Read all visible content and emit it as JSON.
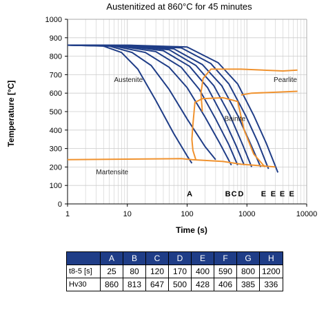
{
  "chart_data": {
    "type": "line",
    "title": "Austenitized at 860°C for 45 minutes",
    "xlabel": "Time (s)",
    "ylabel": "Temperature [°C]",
    "xscale": "log",
    "xlim": [
      1,
      10000
    ],
    "ylim": [
      0,
      1000
    ],
    "x_ticks": [
      "1",
      "10",
      "100",
      "1000",
      "10000"
    ],
    "y_ticks": [
      "0",
      "100",
      "200",
      "300",
      "400",
      "500",
      "600",
      "700",
      "800",
      "900",
      "1000"
    ],
    "grid": true,
    "region_labels": [
      {
        "text": "Austenite",
        "x": 6,
        "y": 660
      },
      {
        "text": "Pearlite",
        "x": 2800,
        "y": 660
      },
      {
        "text": "Bainite",
        "x": 420,
        "y": 450
      },
      {
        "text": "Martensite",
        "x": 3,
        "y": 160
      }
    ],
    "curve_labels": [
      {
        "text": "A",
        "x": 110
      },
      {
        "text": "B",
        "x": 480
      },
      {
        "text": "C",
        "x": 610
      },
      {
        "text": "D",
        "x": 790
      },
      {
        "text": "E",
        "x": 1900
      },
      {
        "text": "E",
        "x": 2750
      },
      {
        "text": "E",
        "x": 3900
      },
      {
        "text": "E",
        "x": 5600
      }
    ],
    "cooling_curves": [
      [
        [
          1,
          860
        ],
        [
          4,
          855
        ],
        [
          8,
          820
        ],
        [
          15,
          730
        ],
        [
          30,
          560
        ],
        [
          60,
          380
        ],
        [
          100,
          260
        ],
        [
          120,
          220
        ]
      ],
      [
        [
          1,
          860
        ],
        [
          5,
          855
        ],
        [
          12,
          820
        ],
        [
          25,
          750
        ],
        [
          50,
          620
        ],
        [
          100,
          460
        ],
        [
          200,
          310
        ],
        [
          300,
          240
        ]
      ],
      [
        [
          1,
          860
        ],
        [
          6,
          855
        ],
        [
          20,
          820
        ],
        [
          50,
          740
        ],
        [
          100,
          630
        ],
        [
          200,
          470
        ],
        [
          350,
          330
        ],
        [
          550,
          210
        ]
      ],
      [
        [
          1,
          860
        ],
        [
          7,
          856
        ],
        [
          30,
          825
        ],
        [
          80,
          740
        ],
        [
          160,
          620
        ],
        [
          300,
          460
        ],
        [
          500,
          320
        ],
        [
          700,
          210
        ]
      ],
      [
        [
          1,
          860
        ],
        [
          8,
          857
        ],
        [
          40,
          830
        ],
        [
          110,
          745
        ],
        [
          220,
          630
        ],
        [
          400,
          470
        ],
        [
          650,
          320
        ],
        [
          900,
          210
        ]
      ],
      [
        [
          1,
          860
        ],
        [
          9,
          858
        ],
        [
          50,
          835
        ],
        [
          140,
          750
        ],
        [
          280,
          640
        ],
        [
          520,
          480
        ],
        [
          850,
          320
        ],
        [
          1200,
          200
        ]
      ],
      [
        [
          1,
          860
        ],
        [
          10,
          858
        ],
        [
          60,
          840
        ],
        [
          180,
          755
        ],
        [
          380,
          640
        ],
        [
          700,
          480
        ],
        [
          1100,
          340
        ],
        [
          1700,
          200
        ]
      ],
      [
        [
          1,
          860
        ],
        [
          11,
          859
        ],
        [
          80,
          845
        ],
        [
          250,
          760
        ],
        [
          500,
          650
        ],
        [
          950,
          480
        ],
        [
          1500,
          340
        ],
        [
          2300,
          190
        ]
      ],
      [
        [
          1,
          860
        ],
        [
          12,
          859
        ],
        [
          100,
          850
        ],
        [
          330,
          765
        ],
        [
          700,
          650
        ],
        [
          1300,
          480
        ],
        [
          2100,
          330
        ],
        [
          3300,
          170
        ]
      ]
    ],
    "transformation_lines": [
      [
        [
          1,
          240
        ],
        [
          80,
          245
        ],
        [
          120,
          240
        ],
        [
          400,
          230
        ],
        [
          800,
          215
        ],
        [
          2000,
          205
        ],
        [
          3000,
          200
        ]
      ],
      [
        [
          140,
          238
        ],
        [
          125,
          290
        ],
        [
          120,
          350
        ],
        [
          125,
          430
        ],
        [
          135,
          550
        ],
        [
          180,
          570
        ],
        [
          400,
          575
        ],
        [
          700,
          555
        ],
        [
          900,
          400
        ],
        [
          1300,
          270
        ],
        [
          2000,
          200
        ]
      ],
      [
        [
          180,
          500
        ],
        [
          170,
          600
        ],
        [
          185,
          680
        ],
        [
          250,
          730
        ],
        [
          800,
          730
        ],
        [
          4000,
          720
        ],
        [
          7000,
          725
        ]
      ],
      [
        [
          800,
          590
        ],
        [
          1200,
          600
        ],
        [
          3000,
          605
        ],
        [
          7000,
          610
        ]
      ]
    ],
    "colors": {
      "curves": "#1f3d87",
      "transformation": "#f0922e",
      "grid": "#cccccc",
      "table_header": "#1f3d87"
    },
    "table": {
      "columns": [
        "A",
        "B",
        "C",
        "D",
        "E",
        "F",
        "G",
        "H"
      ],
      "rows": [
        {
          "label": "t8-5 [s]",
          "values": [
            "25",
            "80",
            "120",
            "170",
            "400",
            "590",
            "800",
            "1200"
          ]
        },
        {
          "label": "Hv30",
          "values": [
            "860",
            "813",
            "647",
            "500",
            "428",
            "406",
            "385",
            "336"
          ]
        }
      ]
    }
  }
}
